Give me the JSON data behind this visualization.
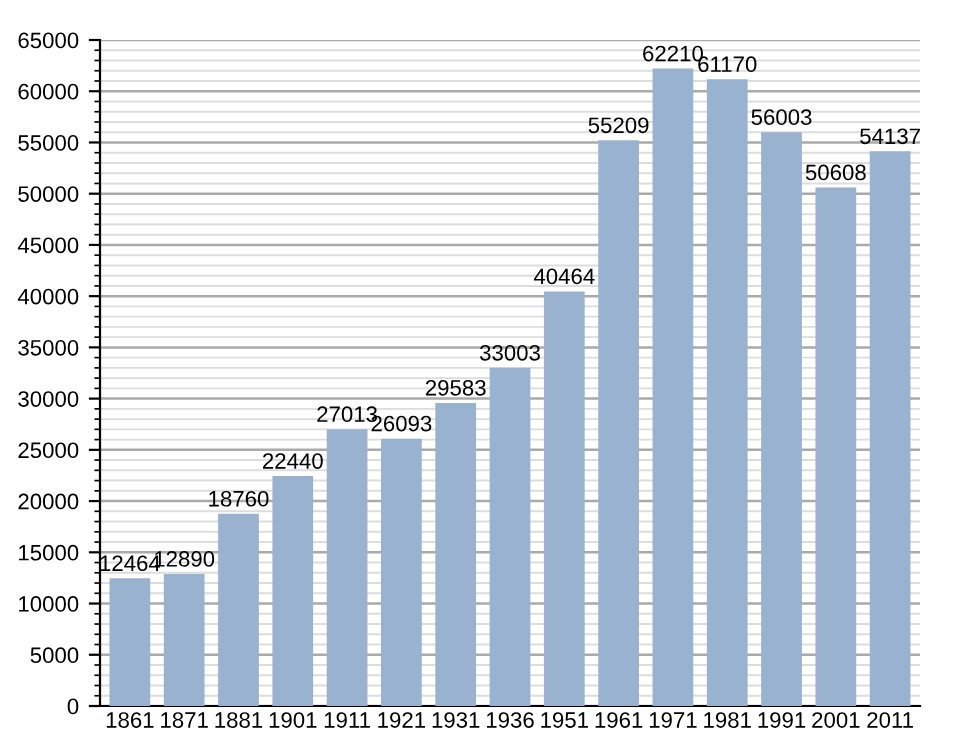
{
  "chart_data": {
    "type": "bar",
    "categories": [
      "1861",
      "1871",
      "1881",
      "1901",
      "1911",
      "1921",
      "1931",
      "1936",
      "1951",
      "1961",
      "1971",
      "1981",
      "1991",
      "2001",
      "2011"
    ],
    "values": [
      12464,
      12890,
      18760,
      22440,
      27013,
      26093,
      29583,
      33003,
      40464,
      55209,
      62210,
      61170,
      56003,
      50608,
      54137
    ],
    "color": "#98b2cf",
    "ylim": [
      0,
      65000
    ],
    "yticks": [
      0,
      5000,
      10000,
      15000,
      20000,
      25000,
      30000,
      35000,
      40000,
      45000,
      50000,
      55000,
      60000,
      65000
    ],
    "grid": "y",
    "data_labels": true
  }
}
